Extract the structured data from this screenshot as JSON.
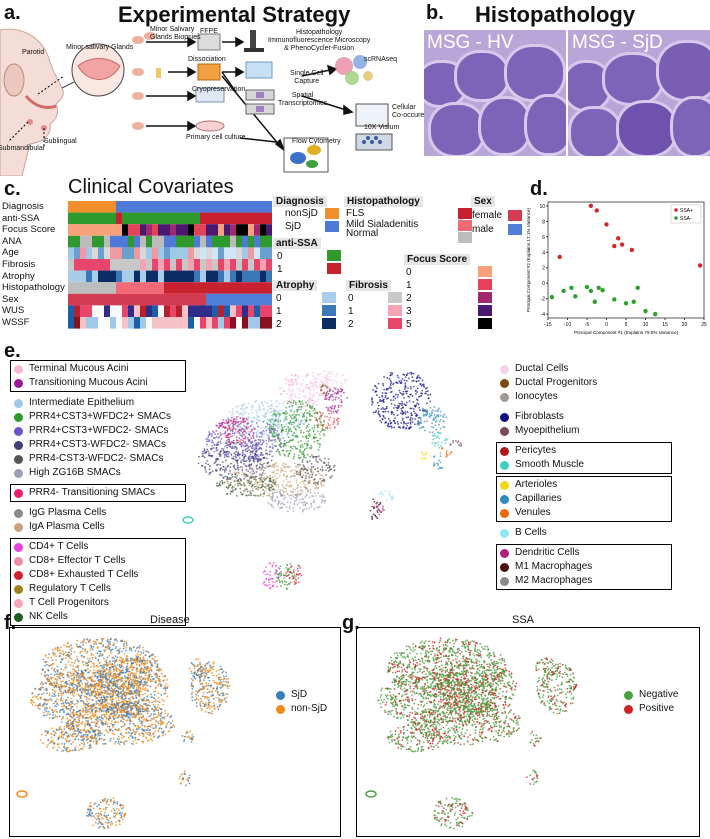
{
  "panel_a": {
    "letter": "a.",
    "title": "Experimental Strategy",
    "anatomy": {
      "parotid": "Parotid",
      "submandibular": "Submandibular",
      "sublingual": "Sublingual",
      "minor": "Minor salivary Glands"
    },
    "steps": {
      "biopsies": "Minor Salivary\nGlands Biopsies",
      "ffpe": "FFPE",
      "dissociation": "Dissociation",
      "cryo": "Cryopreservation",
      "primary": "Primary cell culture",
      "histo": "Histopathology\nImmunofluorescence Microscopy\n& PhenoCycler-Fusion",
      "single": "Single Cell\nCapture",
      "scrna": "scRNAseq",
      "spatial": "Spatial\nTranscriptomics",
      "cellular": "Cellular\nCo-occurence",
      "visium": "10X Visium",
      "flow": "Flow Cytometry"
    }
  },
  "panel_b": {
    "letter": "b.",
    "title": "Histopathology",
    "left_label": "MSG - HV",
    "right_label": "MSG - SjD"
  },
  "panel_c": {
    "letter": "c.",
    "title": "Clinical Covariates",
    "rows": [
      "Diagnosis",
      "anti-SSA",
      "Focus Score",
      "ANA",
      "Age",
      "Fibrosis",
      "Atrophy",
      "Histopathology",
      "Sex",
      "WUS",
      "WSSF"
    ],
    "legends": {
      "diagnosis": {
        "title": "Diagnosis",
        "items": [
          "nonSjD",
          "SjD"
        ],
        "colors": [
          "#f28e2b",
          "#4e79d6"
        ]
      },
      "histopathology": {
        "title": "Histopathology",
        "items": [
          "FLS",
          "Mild Sialadenitis",
          "Normal"
        ],
        "colors": [
          "#c8202f",
          "#f06a78",
          "#bdbdbd"
        ]
      },
      "sex": {
        "title": "Sex",
        "items": [
          "female",
          "male"
        ],
        "colors": [
          "#d23b52",
          "#4f7fd6"
        ]
      },
      "anti_ssa": {
        "title": "anti-SSA",
        "items": [
          "0",
          "1"
        ],
        "colors": [
          "#2e9a2e",
          "#c8202f"
        ]
      },
      "focus_score": {
        "title": "Focus Score",
        "items": [
          "0",
          "1",
          "2",
          "3",
          "5"
        ],
        "colors": [
          "#f7a07a",
          "#e3425a",
          "#a0286e",
          "#4a186e",
          "#000000"
        ]
      },
      "atrophy": {
        "title": "Atrophy",
        "items": [
          "0",
          "1",
          "2"
        ],
        "colors": [
          "#a9cde8",
          "#3a78b8",
          "#0c2c66"
        ]
      },
      "fibrosis": {
        "title": "Fibrosis",
        "items": [
          "0",
          "1",
          "2"
        ],
        "colors": [
          "#c8c8c8",
          "#f4a3b4",
          "#e8456b"
        ]
      }
    }
  },
  "panel_d": {
    "letter": "d.",
    "chart_data": {
      "type": "scatter",
      "xlabel": "Principal Component #1 (Explains 79.0% Variance)",
      "ylabel": "Principal Component #2 (Explains 17.1% Variance)",
      "xlim": [
        -15,
        25
      ],
      "ylim": [
        -4.5,
        10.5
      ],
      "xticks": [
        -15,
        -10,
        -5,
        0,
        5,
        10,
        15,
        20,
        25
      ],
      "yticks": [
        -4,
        -2,
        0,
        2,
        4,
        6,
        8,
        10
      ],
      "series": [
        {
          "name": "SSA+",
          "color": "#d62728",
          "points": [
            [
              -4,
              10
            ],
            [
              -2.5,
              9.4
            ],
            [
              0,
              7.6
            ],
            [
              3,
              5.8
            ],
            [
              2,
              4.8
            ],
            [
              4,
              5
            ],
            [
              6.5,
              4.3
            ],
            [
              -12,
              3.4
            ],
            [
              24,
              2.3
            ]
          ]
        },
        {
          "name": "SSA-",
          "color": "#2ca02c",
          "points": [
            [
              -14,
              -1.8
            ],
            [
              -11,
              -1
            ],
            [
              -9,
              -0.6
            ],
            [
              -8,
              -1.7
            ],
            [
              -5,
              -0.5
            ],
            [
              -4,
              -1
            ],
            [
              -2,
              -0.6
            ],
            [
              -1,
              -0.9
            ],
            [
              -3,
              -2.4
            ],
            [
              2,
              -2.1
            ],
            [
              5,
              -2.6
            ],
            [
              7,
              -2.4
            ],
            [
              8,
              -0.6
            ],
            [
              10,
              -3.6
            ],
            [
              12.5,
              -4
            ]
          ]
        }
      ]
    }
  },
  "panel_e": {
    "letter": "e.",
    "left_groups": [
      [
        [
          "Terminal Mucous Acini",
          "#f5b7d8"
        ],
        [
          "Transitioning Mucous Acini",
          "#9a1a9a"
        ]
      ],
      [
        [
          "Intermediate Epithelium",
          "#9ec7ef"
        ],
        [
          "PRR4+CST3+WFDC2+ SMACs",
          "#2e9a2e"
        ],
        [
          "PRR4+CST3+WFDC2- SMACs",
          "#6f52c8"
        ],
        [
          "PRR4+CST3-WFDC2- SMACs",
          "#3f3f7a"
        ],
        [
          "PRR4-CST3-WFDC2- SMACs",
          "#555555"
        ],
        [
          "High ZG16B SMACs",
          "#9aa0b4"
        ]
      ],
      [
        [
          "PRR4- Transitioning SMACs",
          "#e8206c"
        ]
      ],
      [
        [
          "IgG Plasma Cells",
          "#8a8a8a"
        ],
        [
          "IgA Plasma Cells",
          "#c8a27a"
        ]
      ],
      [
        [
          "CD4+ T Cells",
          "#e83fe0"
        ],
        [
          "CD8+ Effector T Cells",
          "#f08aa0"
        ],
        [
          "CD8+ Exhausted T Cells",
          "#d42030"
        ],
        [
          "Regulatory T Cells",
          "#a08018"
        ],
        [
          "T Cell Progenitors",
          "#f6a4b8"
        ],
        [
          "NK Cells",
          "#1f5a1f"
        ]
      ]
    ],
    "right_groups": [
      [
        [
          "Ductal Cells",
          "#f8d0ea"
        ],
        [
          "Ductal Progenitors",
          "#7a4a10"
        ],
        [
          "Ionocytes",
          "#a09a96"
        ]
      ],
      [
        [
          "Fibroblasts",
          "#10108a"
        ],
        [
          "Myoepithelium",
          "#7a4a5a"
        ]
      ],
      [
        [
          "Pericytes",
          "#b01818"
        ],
        [
          "Smooth Muscle",
          "#40d0c0"
        ]
      ],
      [
        [
          "Arterioles",
          "#f0d818"
        ],
        [
          "Capillaries",
          "#2e8ac0"
        ],
        [
          "Venules",
          "#e86a10"
        ]
      ],
      [
        [
          "B Cells",
          "#90e8f0"
        ]
      ],
      [
        [
          "Dendritic Cells",
          "#b0207a"
        ],
        [
          "M1 Macrophages",
          "#4a1010"
        ],
        [
          "M2 Macrophages",
          "#8a8a8a"
        ]
      ]
    ]
  },
  "panel_f": {
    "letter": "f.",
    "title": "Disease",
    "legend": [
      [
        "SjD",
        "#3a7eb8"
      ],
      [
        "non-SjD",
        "#f08a18"
      ]
    ]
  },
  "panel_g": {
    "letter": "g.",
    "title": "SSA",
    "legend": [
      [
        "Negative",
        "#4aa040"
      ],
      [
        "Positive",
        "#d02020"
      ]
    ]
  }
}
